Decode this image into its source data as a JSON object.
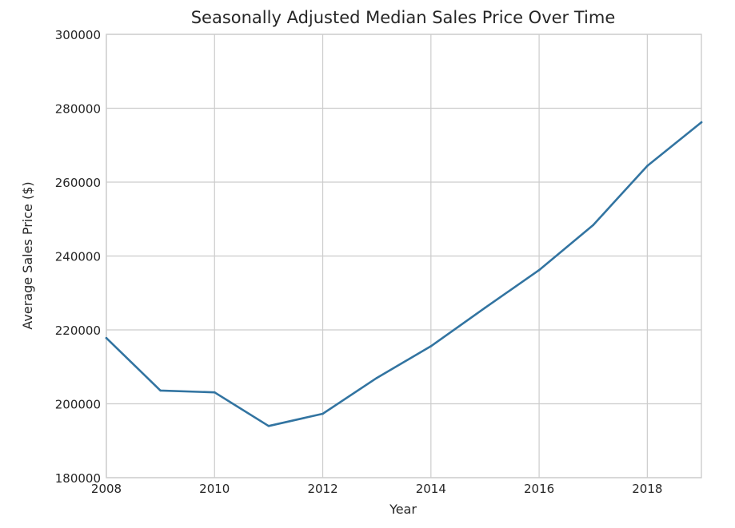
{
  "chart_data": {
    "type": "line",
    "title": "Seasonally Adjusted Median Sales Price Over Time",
    "xlabel": "Year",
    "ylabel": "Average Sales Price ($)",
    "xlim": [
      2008,
      2019
    ],
    "ylim": [
      180000,
      300000
    ],
    "xticks": [
      2008,
      2010,
      2012,
      2014,
      2016,
      2018
    ],
    "yticks": [
      180000,
      200000,
      220000,
      240000,
      260000,
      280000,
      300000
    ],
    "grid": true,
    "line_color": "#3274a1",
    "x": [
      2008,
      2009,
      2010,
      2011,
      2012,
      2013,
      2014,
      2015,
      2016,
      2017,
      2018,
      2019
    ],
    "values": [
      217800,
      203600,
      203100,
      194000,
      197300,
      207000,
      215600,
      226000,
      236200,
      248400,
      264400,
      276200
    ]
  }
}
